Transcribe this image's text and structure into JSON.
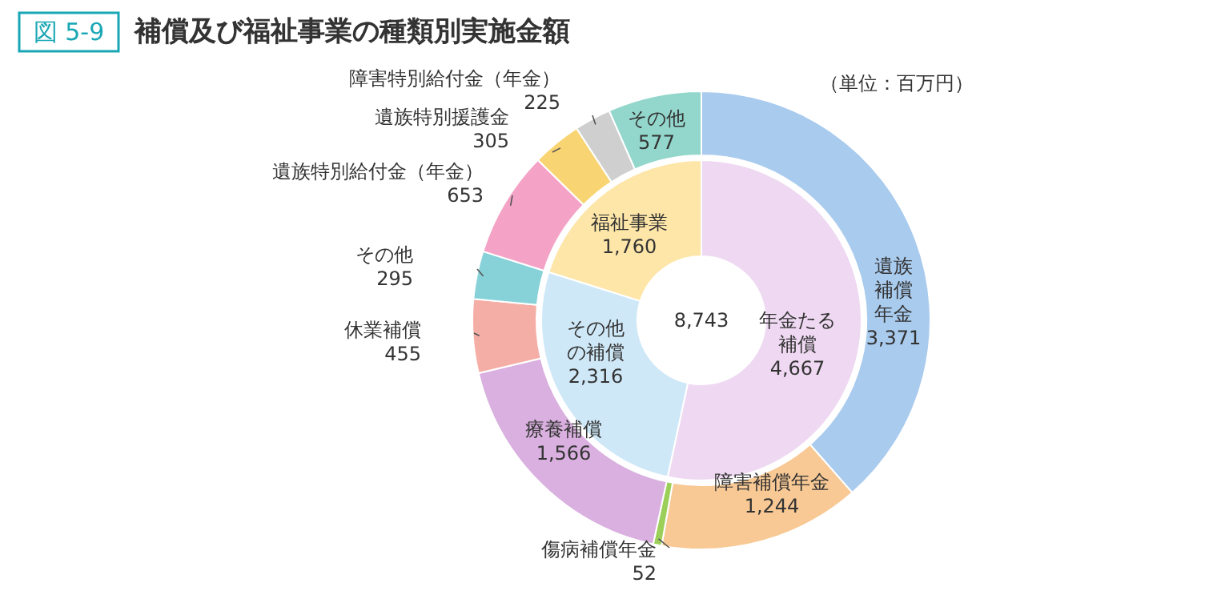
{
  "chart_data": [
    {
      "type": "donut",
      "title": "補償及び福祉事業の種類別実施金額",
      "annotations": [
        "図 5-9",
        "（単位：百万円）",
        "8,743"
      ],
      "categories": [
        "年金たる補償",
        "その他の補償",
        "福祉事業"
      ],
      "values": [
        4667,
        2316,
        1760
      ],
      "colors": [
        "#efd9f2",
        "#cfe8f8",
        "#fde6a8"
      ],
      "value_labels": [
        "4,667",
        "2,316",
        "1,760"
      ]
    },
    {
      "type": "donut",
      "categories": [
        "遺族補償年金",
        "障害補償年金",
        "傷病補償年金",
        "療養補償",
        "休業補償",
        "その他",
        "遺族特別給付金（年金）",
        "遺族特別援護金",
        "障害特別給付金（年金）",
        "その他"
      ],
      "values": [
        3371,
        1244,
        52,
        1566,
        455,
        295,
        653,
        305,
        225,
        577
      ],
      "colors": [
        "#a9cbee",
        "#f8c995",
        "#9ccf5a",
        "#d9b0df",
        "#f5aea6",
        "#86d2d8",
        "#f4a3c6",
        "#f8d472",
        "#cfcfcf",
        "#93d7cc"
      ],
      "value_labels": [
        "3,371",
        "1,244",
        "52",
        "1,566",
        "455",
        "295",
        "653",
        "305",
        "225",
        "577"
      ]
    }
  ]
}
